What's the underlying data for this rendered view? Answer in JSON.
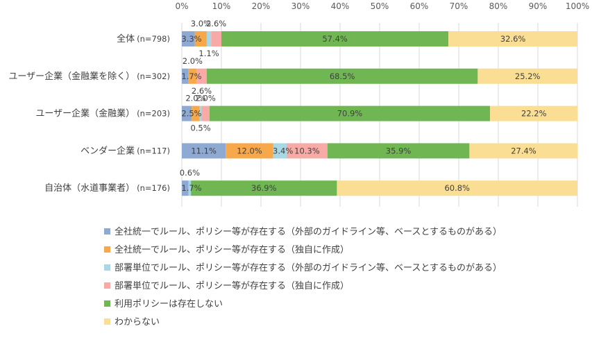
{
  "chart_data": {
    "type": "bar",
    "orientation": "horizontal",
    "stacked": true,
    "xlim": [
      0,
      100
    ],
    "x_ticks": [
      "0%",
      "10%",
      "20%",
      "30%",
      "40%",
      "50%",
      "60%",
      "70%",
      "80%",
      "90%",
      "100%"
    ],
    "grid": true,
    "legend_position": "bottom-left",
    "categories": [
      {
        "label": "全体",
        "n": "(n=798)"
      },
      {
        "label": "ユーザー企業（金融業を除く）",
        "n": "(n=302)"
      },
      {
        "label": "ユーザー企業（金融業）",
        "n": "(n=203)"
      },
      {
        "label": "ベンダー企業",
        "n": "(n=117)"
      },
      {
        "label": "自治体（水道事業者）",
        "n": "(n=176)"
      }
    ],
    "series": [
      {
        "name": "全社統一でルール、ポリシー等が存在する（外部のガイドライン等、ベースとするものがある）",
        "color": "#8EA9D2",
        "values": [
          3.3,
          1.7,
          2.5,
          11.1,
          1.7
        ],
        "labels": [
          "3.3%",
          "1.7%",
          "2.5%",
          "11.1%",
          "1.7%"
        ]
      },
      {
        "name": "全社統一でルール、ポリシー等が存在する（独自に作成）",
        "color": "#F6A84B",
        "values": [
          3.0,
          2.0,
          2.0,
          12.0,
          0.0
        ],
        "labels": [
          "3.0%",
          "2.0%",
          "2.0%",
          "12.0%",
          ""
        ]
      },
      {
        "name": "部署単位でルール、ポリシー等が存在する（外部のガイドライン等、ベースとするものがある）",
        "color": "#A7D8E4",
        "values": [
          1.1,
          0.0,
          0.5,
          3.4,
          0.6
        ],
        "labels": [
          "1.1%",
          "",
          "0.5%",
          "3.4%",
          "0.6%"
        ]
      },
      {
        "name": "部署単位でルール、ポリシー等が存在する（独自に作成）",
        "color": "#F8AAA7",
        "values": [
          2.6,
          2.6,
          2.0,
          10.3,
          0.0
        ],
        "labels": [
          "2.6%",
          "2.6%",
          "2.0%",
          "10.3%",
          ""
        ]
      },
      {
        "name": "利用ポリシーは存在しない",
        "color": "#70B754",
        "values": [
          57.4,
          68.5,
          70.9,
          35.9,
          36.9
        ],
        "labels": [
          "57.4%",
          "68.5%",
          "70.9%",
          "35.9%",
          "36.9%"
        ]
      },
      {
        "name": "わからない",
        "color": "#F9DE94",
        "values": [
          32.6,
          25.2,
          22.2,
          27.4,
          60.8
        ],
        "labels": [
          "32.6%",
          "25.2%",
          "22.2%",
          "27.4%",
          "60.8%"
        ]
      }
    ]
  }
}
